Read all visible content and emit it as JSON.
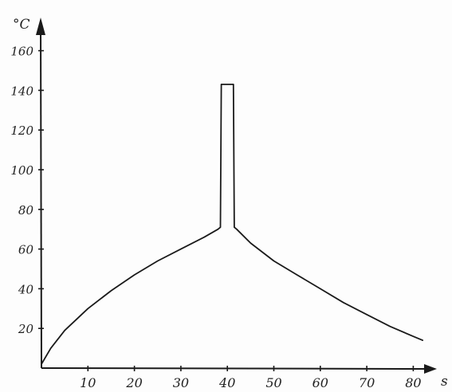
{
  "chart_data": {
    "type": "line",
    "title": "",
    "xlabel": "s",
    "ylabel": "°C",
    "xlim": [
      0,
      85
    ],
    "ylim": [
      0,
      170
    ],
    "x_ticks": [
      10,
      20,
      30,
      40,
      50,
      60,
      70,
      80
    ],
    "y_ticks": [
      20,
      40,
      60,
      80,
      100,
      120,
      140,
      160
    ],
    "grid": false,
    "legend": "none",
    "series": [
      {
        "color": "#1a1a1a",
        "points": [
          [
            0,
            2
          ],
          [
            2,
            10
          ],
          [
            5,
            19
          ],
          [
            10,
            30
          ],
          [
            15,
            39
          ],
          [
            20,
            47
          ],
          [
            25,
            54
          ],
          [
            30,
            60
          ],
          [
            35,
            66
          ],
          [
            38,
            70
          ],
          [
            38.5,
            71
          ],
          [
            38.7,
            143
          ],
          [
            41.3,
            143
          ],
          [
            41.5,
            71
          ],
          [
            42,
            70
          ],
          [
            45,
            63
          ],
          [
            50,
            54
          ],
          [
            55,
            47
          ],
          [
            60,
            40
          ],
          [
            65,
            33
          ],
          [
            70,
            27
          ],
          [
            75,
            21
          ],
          [
            80,
            16
          ],
          [
            82,
            14
          ]
        ]
      }
    ]
  }
}
